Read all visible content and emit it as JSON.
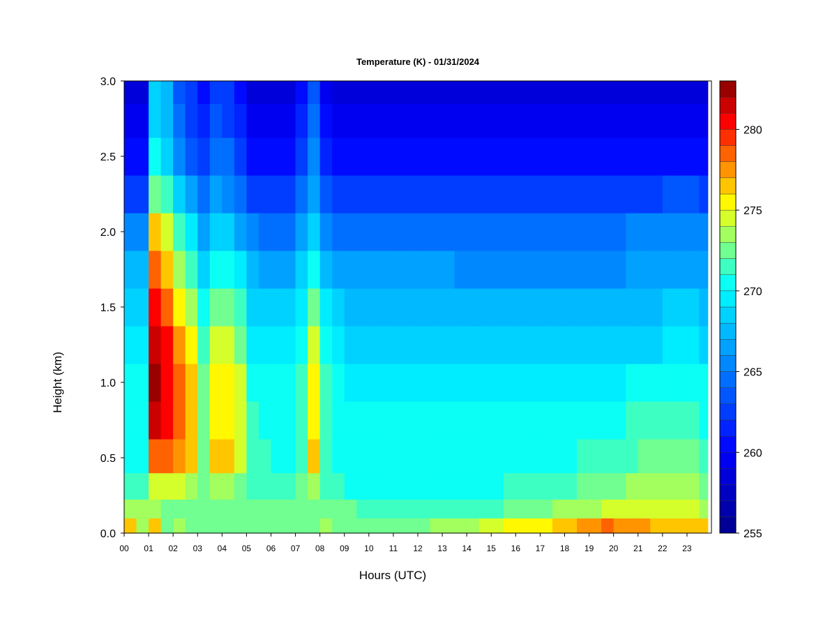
{
  "chart_data": {
    "type": "heatmap",
    "title": "Temperature (K) - 01/31/2024",
    "xlabel": "Hours (UTC)",
    "ylabel": "Height (km)",
    "xlim": [
      0,
      24
    ],
    "ylim": [
      0,
      3.0
    ],
    "x_ticks": [
      {
        "value": 0,
        "label": "00"
      },
      {
        "value": 1,
        "label": "01"
      },
      {
        "value": 2,
        "label": "02"
      },
      {
        "value": 3,
        "label": "03"
      },
      {
        "value": 4,
        "label": "04"
      },
      {
        "value": 5,
        "label": "05"
      },
      {
        "value": 6,
        "label": "06"
      },
      {
        "value": 7,
        "label": "07"
      },
      {
        "value": 8,
        "label": "08"
      },
      {
        "value": 9,
        "label": "09"
      },
      {
        "value": 10,
        "label": "10"
      },
      {
        "value": 11,
        "label": "11"
      },
      {
        "value": 12,
        "label": "12"
      },
      {
        "value": 13,
        "label": "13"
      },
      {
        "value": 14,
        "label": "14"
      },
      {
        "value": 15,
        "label": "15"
      },
      {
        "value": 16,
        "label": "16"
      },
      {
        "value": 17,
        "label": "17"
      },
      {
        "value": 18,
        "label": "18"
      },
      {
        "value": 19,
        "label": "19"
      },
      {
        "value": 20,
        "label": "20"
      },
      {
        "value": 21,
        "label": "21"
      },
      {
        "value": 22,
        "label": "22"
      },
      {
        "value": 23,
        "label": "23"
      }
    ],
    "y_ticks": [
      {
        "value": 0.0,
        "label": "0.0"
      },
      {
        "value": 0.5,
        "label": "0.5"
      },
      {
        "value": 1.0,
        "label": "1.0"
      },
      {
        "value": 1.5,
        "label": "1.5"
      },
      {
        "value": 2.0,
        "label": "2.0"
      },
      {
        "value": 2.5,
        "label": "2.5"
      },
      {
        "value": 3.0,
        "label": "3.0"
      }
    ],
    "x_grid_hours": [
      0.25,
      0.75,
      1.25,
      1.75,
      2.25,
      2.75,
      3.25,
      3.75,
      4.25,
      4.75,
      5.25,
      5.75,
      6.25,
      6.75,
      7.25,
      7.75,
      8.25,
      8.75,
      9.25,
      9.75,
      10.25,
      10.75,
      11.25,
      11.75,
      12.25,
      12.75,
      13.25,
      13.75,
      14.25,
      14.75,
      15.25,
      15.75,
      16.25,
      16.75,
      17.25,
      17.75,
      18.25,
      18.75,
      19.25,
      19.75,
      20.25,
      20.75,
      21.25,
      21.75,
      22.25,
      22.75,
      23.25,
      23.75
    ],
    "y_grid_km": [
      0.05,
      0.15,
      0.3,
      0.5,
      0.75,
      1.0,
      1.25,
      1.5,
      1.75,
      2.0,
      2.25,
      2.5,
      2.75,
      2.95
    ],
    "temperature_K_rows_bottom_to_top": [
      [
        276,
        273,
        276,
        272,
        273,
        272,
        272,
        272,
        272,
        272,
        272,
        272,
        272,
        272,
        272,
        272,
        273,
        272,
        272,
        272,
        272,
        272,
        272,
        272,
        272,
        273,
        273,
        273,
        273,
        274,
        274,
        275,
        275,
        275,
        275,
        276,
        276,
        277,
        277,
        278,
        277,
        277,
        277,
        276,
        276,
        276,
        276,
        276
      ],
      [
        273,
        273,
        273,
        272,
        272,
        272,
        272,
        272,
        272,
        272,
        272,
        272,
        272,
        272,
        272,
        272,
        272,
        272,
        272,
        271,
        271,
        271,
        271,
        271,
        271,
        271,
        271,
        271,
        271,
        271,
        271,
        272,
        272,
        272,
        272,
        273,
        273,
        273,
        273,
        274,
        274,
        274,
        274,
        274,
        274,
        274,
        274,
        273
      ],
      [
        271,
        271,
        274,
        274,
        274,
        273,
        272,
        273,
        273,
        272,
        271,
        271,
        271,
        271,
        272,
        273,
        271,
        271,
        270,
        270,
        270,
        270,
        270,
        270,
        270,
        270,
        270,
        270,
        270,
        270,
        270,
        271,
        271,
        271,
        271,
        271,
        271,
        272,
        272,
        272,
        272,
        273,
        273,
        273,
        273,
        273,
        273,
        272
      ],
      [
        270,
        270,
        278,
        278,
        277,
        276,
        272,
        276,
        276,
        274,
        271,
        271,
        270,
        270,
        271,
        276,
        271,
        270,
        270,
        270,
        270,
        270,
        270,
        270,
        270,
        270,
        270,
        270,
        270,
        270,
        270,
        270,
        270,
        270,
        270,
        270,
        270,
        271,
        271,
        271,
        271,
        271,
        272,
        272,
        272,
        272,
        272,
        271
      ],
      [
        270,
        270,
        281,
        280,
        278,
        276,
        272,
        275,
        275,
        274,
        271,
        270,
        270,
        270,
        271,
        275,
        271,
        270,
        270,
        270,
        270,
        270,
        270,
        270,
        270,
        270,
        270,
        270,
        270,
        270,
        270,
        270,
        270,
        270,
        270,
        270,
        270,
        270,
        270,
        270,
        270,
        271,
        271,
        271,
        271,
        271,
        271,
        270
      ],
      [
        270,
        270,
        282,
        280,
        278,
        276,
        272,
        275,
        275,
        274,
        270,
        270,
        270,
        270,
        271,
        275,
        271,
        270,
        269,
        269,
        269,
        269,
        269,
        269,
        269,
        269,
        269,
        269,
        269,
        269,
        269,
        269,
        269,
        269,
        269,
        269,
        269,
        269,
        269,
        269,
        269,
        270,
        270,
        270,
        270,
        270,
        270,
        270
      ],
      [
        269,
        269,
        281,
        280,
        277,
        275,
        271,
        274,
        274,
        272,
        269,
        269,
        269,
        269,
        270,
        274,
        270,
        269,
        268,
        268,
        268,
        268,
        268,
        268,
        268,
        268,
        268,
        268,
        268,
        268,
        268,
        268,
        268,
        268,
        268,
        268,
        268,
        268,
        268,
        268,
        268,
        268,
        268,
        268,
        269,
        269,
        269,
        268
      ],
      [
        268,
        268,
        280,
        278,
        275,
        273,
        270,
        272,
        272,
        271,
        268,
        268,
        268,
        268,
        269,
        272,
        269,
        268,
        267,
        267,
        267,
        267,
        267,
        267,
        267,
        267,
        267,
        267,
        267,
        267,
        267,
        267,
        267,
        267,
        267,
        267,
        267,
        267,
        267,
        267,
        267,
        267,
        267,
        267,
        268,
        268,
        268,
        267
      ],
      [
        267,
        267,
        278,
        276,
        273,
        271,
        268,
        270,
        270,
        269,
        267,
        266,
        266,
        266,
        268,
        270,
        267,
        266,
        266,
        266,
        266,
        266,
        266,
        266,
        266,
        266,
        266,
        265,
        265,
        265,
        265,
        265,
        265,
        265,
        265,
        265,
        265,
        265,
        265,
        265,
        265,
        266,
        266,
        266,
        266,
        266,
        266,
        266
      ],
      [
        265,
        265,
        276,
        274,
        271,
        269,
        266,
        268,
        268,
        266,
        265,
        264,
        264,
        264,
        266,
        268,
        265,
        264,
        264,
        264,
        264,
        264,
        264,
        264,
        264,
        264,
        264,
        264,
        264,
        264,
        264,
        264,
        264,
        264,
        264,
        264,
        264,
        264,
        264,
        264,
        264,
        265,
        265,
        265,
        265,
        265,
        265,
        265
      ],
      [
        262,
        262,
        272,
        271,
        268,
        266,
        264,
        266,
        265,
        264,
        262,
        262,
        262,
        262,
        264,
        266,
        263,
        262,
        262,
        262,
        262,
        262,
        262,
        262,
        262,
        262,
        262,
        262,
        262,
        262,
        262,
        262,
        262,
        262,
        262,
        262,
        262,
        262,
        262,
        262,
        262,
        262,
        262,
        262,
        263,
        263,
        263,
        262
      ],
      [
        260,
        260,
        270,
        268,
        265,
        263,
        262,
        264,
        264,
        262,
        260,
        260,
        260,
        260,
        262,
        265,
        261,
        260,
        260,
        260,
        260,
        260,
        260,
        260,
        260,
        260,
        260,
        260,
        260,
        260,
        260,
        260,
        260,
        260,
        260,
        260,
        260,
        260,
        260,
        260,
        260,
        260,
        260,
        260,
        260,
        260,
        260,
        260
      ],
      [
        259,
        259,
        268,
        267,
        264,
        262,
        261,
        263,
        262,
        261,
        259,
        259,
        259,
        259,
        261,
        264,
        260,
        259,
        259,
        259,
        259,
        259,
        259,
        259,
        259,
        259,
        259,
        259,
        259,
        259,
        259,
        259,
        259,
        259,
        259,
        259,
        259,
        259,
        259,
        259,
        259,
        259,
        259,
        259,
        259,
        259,
        259,
        259
      ],
      [
        258,
        258,
        268,
        267,
        263,
        262,
        260,
        262,
        262,
        260,
        258,
        258,
        258,
        258,
        260,
        263,
        259,
        258,
        258,
        258,
        258,
        258,
        258,
        258,
        258,
        258,
        258,
        258,
        258,
        258,
        258,
        258,
        258,
        258,
        258,
        258,
        258,
        258,
        258,
        258,
        258,
        258,
        258,
        258,
        258,
        258,
        258,
        258
      ]
    ],
    "colorbar": {
      "min": 255,
      "max": 283,
      "ticks": [
        255,
        260,
        265,
        270,
        275,
        280
      ],
      "tick_labels": [
        "255",
        "260",
        "265",
        "270",
        "275",
        "280"
      ],
      "levels": 28,
      "colors_low_to_high": [
        "#00008b",
        "#0000c4",
        "#0000ff",
        "#0040ff",
        "#0080ff",
        "#00bfff",
        "#00ffff",
        "#80ff80",
        "#ffff00",
        "#ff8000",
        "#ff0000",
        "#800000"
      ]
    },
    "grid": false,
    "legend": "colorbar-right"
  }
}
